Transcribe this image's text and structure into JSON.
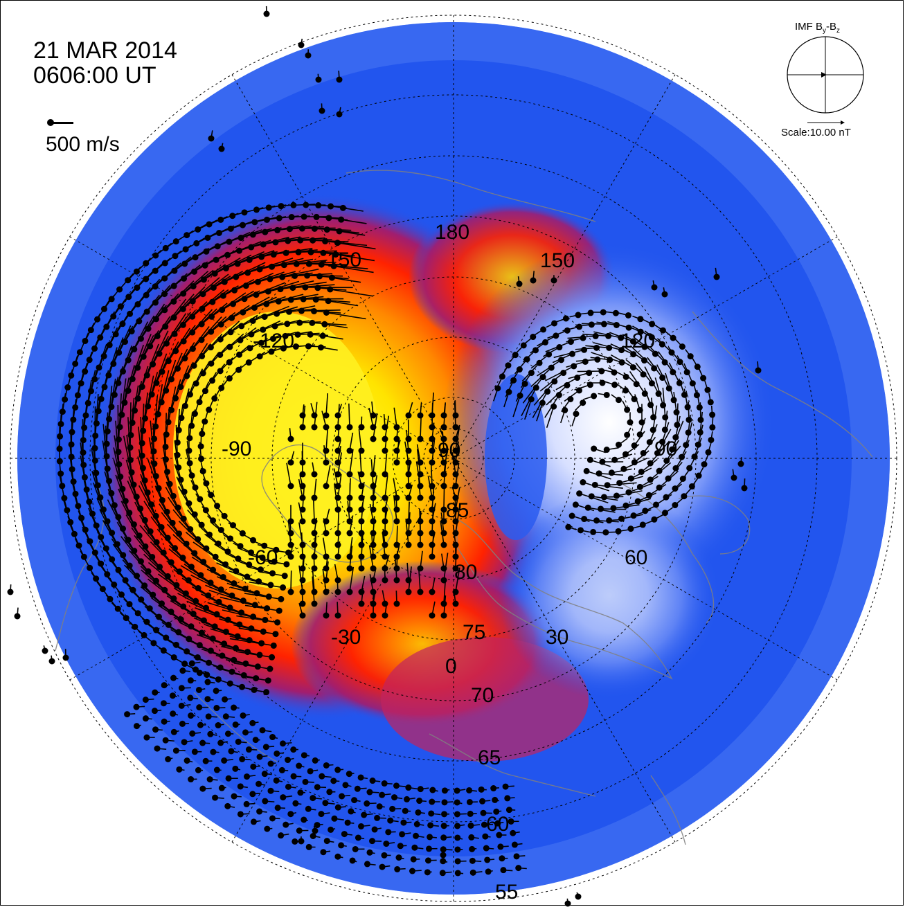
{
  "header": {
    "date": "21 MAR 2014",
    "time": "0606:00 UT"
  },
  "velocity_scale": {
    "label": "500 m/s"
  },
  "imf": {
    "title": "IMF B",
    "sub_y": "y",
    "dash": "-B",
    "sub_z": "z",
    "scale_label": "Scale:10.00 nT"
  },
  "map": {
    "longitude_labels": [
      "180",
      "-150",
      "150",
      "-120",
      "120",
      "-90",
      "90",
      "-60",
      "60",
      "-30",
      "30",
      "0"
    ],
    "latitude_labels": [
      "90",
      "85",
      "80",
      "75",
      "70",
      "65",
      "60",
      "55"
    ],
    "colors": {
      "background_blue": "#2255ee",
      "positive_max": "#ffee00",
      "positive_mid": "#ff2200",
      "positive_low": "#7a2aa0",
      "negative_max": "#ffffff",
      "vector": "#000000",
      "coastline": "#808080",
      "grid": "#000000"
    }
  }
}
